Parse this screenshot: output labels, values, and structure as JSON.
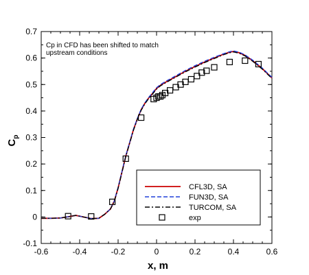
{
  "chart_data": {
    "type": "line",
    "xlabel": "x, m",
    "ylabel": "C",
    "ylabel_subscript": "p",
    "xlim": [
      -0.6,
      0.6
    ],
    "ylim": [
      -0.1,
      0.7
    ],
    "xticks": [
      -0.6,
      -0.4,
      -0.2,
      0,
      0.2,
      0.4,
      0.6
    ],
    "xtick_labels": [
      "-0.6",
      "-0.4",
      "-0.2",
      "0",
      "0.2",
      "0.4",
      "0.6"
    ],
    "yticks": [
      -0.1,
      0,
      0.1,
      0.2,
      0.3,
      0.4,
      0.5,
      0.6,
      0.7
    ],
    "ytick_labels": [
      "-0.1",
      "0",
      "0.1",
      "0.2",
      "0.3",
      "0.4",
      "0.5",
      "0.6",
      "0.7"
    ],
    "grid": false,
    "legend_position": "bottom-right",
    "annotation_lines": [
      "Cp in CFD has been shifted to match",
      "upstream conditions"
    ],
    "series": [
      {
        "name": "CFL3D, SA",
        "style": "solid",
        "color": "#cc0000",
        "x": [
          -0.6,
          -0.55,
          -0.5,
          -0.45,
          -0.42,
          -0.38,
          -0.34,
          -0.3,
          -0.27,
          -0.24,
          -0.22,
          -0.2,
          -0.18,
          -0.16,
          -0.14,
          -0.12,
          -0.1,
          -0.08,
          -0.06,
          -0.04,
          -0.02,
          0,
          0.02,
          0.05,
          0.08,
          0.1,
          0.15,
          0.2,
          0.25,
          0.3,
          0.35,
          0.38,
          0.4,
          0.43,
          0.46,
          0.5,
          0.55,
          0.6
        ],
        "y": [
          -0.005,
          -0.005,
          -0.004,
          0.002,
          0.006,
          0.0,
          -0.006,
          -0.005,
          0.01,
          0.03,
          0.06,
          0.11,
          0.17,
          0.23,
          0.28,
          0.33,
          0.37,
          0.405,
          0.43,
          0.45,
          0.467,
          0.485,
          0.497,
          0.51,
          0.522,
          0.53,
          0.55,
          0.568,
          0.585,
          0.6,
          0.615,
          0.622,
          0.625,
          0.62,
          0.61,
          0.59,
          0.56,
          0.525
        ]
      },
      {
        "name": "FUN3D, SA",
        "style": "dashed",
        "color": "#1f3fd9",
        "x": [
          -0.6,
          -0.55,
          -0.5,
          -0.45,
          -0.42,
          -0.38,
          -0.34,
          -0.3,
          -0.27,
          -0.24,
          -0.22,
          -0.2,
          -0.18,
          -0.16,
          -0.14,
          -0.12,
          -0.1,
          -0.08,
          -0.06,
          -0.04,
          -0.02,
          0,
          0.02,
          0.05,
          0.08,
          0.1,
          0.15,
          0.2,
          0.25,
          0.3,
          0.35,
          0.38,
          0.4,
          0.43,
          0.46,
          0.5,
          0.55,
          0.6
        ],
        "y": [
          -0.005,
          -0.005,
          -0.004,
          0.002,
          0.006,
          0.0,
          -0.006,
          -0.005,
          0.01,
          0.03,
          0.06,
          0.112,
          0.172,
          0.232,
          0.282,
          0.332,
          0.372,
          0.407,
          0.432,
          0.452,
          0.47,
          0.488,
          0.5,
          0.513,
          0.525,
          0.533,
          0.553,
          0.571,
          0.588,
          0.603,
          0.617,
          0.624,
          0.627,
          0.622,
          0.612,
          0.592,
          0.562,
          0.527
        ]
      },
      {
        "name": "TURCOM, SA",
        "style": "dashdot",
        "color": "#000000",
        "x": [
          -0.6,
          -0.55,
          -0.5,
          -0.45,
          -0.42,
          -0.38,
          -0.34,
          -0.3,
          -0.27,
          -0.24,
          -0.22,
          -0.2,
          -0.18,
          -0.16,
          -0.14,
          -0.12,
          -0.1,
          -0.08,
          -0.06,
          -0.04,
          -0.02,
          0,
          0.02,
          0.05,
          0.08,
          0.1,
          0.15,
          0.2,
          0.25,
          0.3,
          0.35,
          0.38,
          0.4,
          0.43,
          0.46,
          0.5,
          0.55,
          0.6
        ],
        "y": [
          -0.005,
          -0.005,
          -0.004,
          0.002,
          0.006,
          0.0,
          -0.006,
          -0.005,
          0.01,
          0.03,
          0.058,
          0.108,
          0.168,
          0.228,
          0.278,
          0.328,
          0.368,
          0.403,
          0.428,
          0.448,
          0.465,
          0.483,
          0.495,
          0.508,
          0.52,
          0.528,
          0.548,
          0.566,
          0.583,
          0.598,
          0.613,
          0.62,
          0.623,
          0.618,
          0.608,
          0.588,
          0.558,
          0.523
        ]
      },
      {
        "name": "exp",
        "style": "markers",
        "marker": "square",
        "color": "#000000",
        "x": [
          -0.46,
          -0.34,
          -0.23,
          -0.16,
          -0.08,
          -0.015,
          0.0,
          0.01,
          0.02,
          0.03,
          0.045,
          0.07,
          0.1,
          0.125,
          0.15,
          0.18,
          0.21,
          0.235,
          0.26,
          0.3,
          0.38,
          0.46,
          0.53
        ],
        "y": [
          0.003,
          0.002,
          0.057,
          0.22,
          0.375,
          0.445,
          0.45,
          0.455,
          0.455,
          0.46,
          0.468,
          0.478,
          0.49,
          0.5,
          0.51,
          0.52,
          0.532,
          0.545,
          0.552,
          0.565,
          0.585,
          0.59,
          0.577
        ]
      }
    ]
  }
}
